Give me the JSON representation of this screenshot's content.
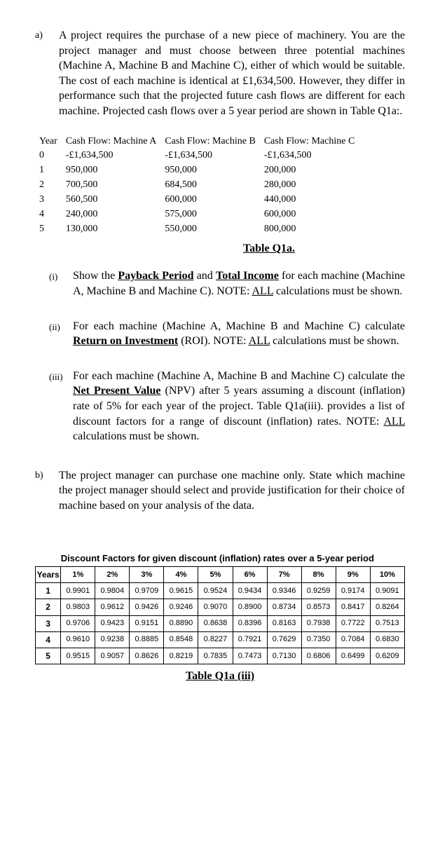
{
  "q_a": {
    "marker": "a)",
    "text": "A project requires the purchase of a new piece of machinery.  You are the project manager and must choose between three potential machines (Machine A, Machine B and Machine C), either of which would be suitable. The cost of each machine is identical at £1,634,500. However, they differ in performance such that the projected future cash flows are different for each machine.  Projected cash flows over a 5 year period are shown in Table Q1a:."
  },
  "cashflow": {
    "header": [
      "Year",
      "Cash Flow: Machine A",
      "Cash Flow: Machine B",
      "Cash Flow: Machine C"
    ],
    "rows": [
      [
        "0",
        "-£1,634,500",
        "-£1,634,500",
        "-£1,634,500"
      ],
      [
        "1",
        "950,000",
        "950,000",
        "200,000"
      ],
      [
        "2",
        "700,500",
        "684,500",
        "280,000"
      ],
      [
        "3",
        "560,500",
        "600,000",
        "440,000"
      ],
      [
        "4",
        "240,000",
        "575,000",
        "600,000"
      ],
      [
        "5",
        "130,000",
        "550,000",
        "800,000"
      ]
    ],
    "caption": "Table Q1a."
  },
  "sub": {
    "i": {
      "marker": "(i)",
      "pre": "Show the ",
      "u1": "Payback Period",
      "mid1": " and ",
      "u2": "Total Income",
      "post": " for each machine (Machine A, Machine B and Machine C). NOTE: ",
      "u3": "ALL",
      "tail": " calculations must be shown."
    },
    "ii": {
      "marker": "(ii)",
      "pre": "For each machine (Machine A, Machine B and Machine C) calculate ",
      "u1": "Return on Investment",
      "post": " (ROI). NOTE: ",
      "u2": "ALL",
      "tail": " calculations must be shown."
    },
    "iii": {
      "marker": "(iii)",
      "pre": "For each machine (Machine A, Machine B and Machine C) calculate the ",
      "u1": "Net Present Value",
      "post": " (NPV) after 5 years assuming a discount (inflation) rate of 5% for each year of the project.  Table Q1a(iii). provides a list of discount factors for a range of discount (inflation) rates. NOTE: ",
      "u2": "ALL",
      "tail": " calculations must be shown."
    }
  },
  "q_b": {
    "marker": "b)",
    "text": "The project manager can purchase one machine only.  State which machine the project manager should select and provide justification for their choice of machine based on your analysis of the data."
  },
  "discount": {
    "title": "Discount Factors for given discount (inflation) rates over a 5-year period",
    "years_label": "Years",
    "cols": [
      "1%",
      "2%",
      "3%",
      "4%",
      "5%",
      "6%",
      "7%",
      "8%",
      "9%",
      "10%"
    ],
    "rows": [
      {
        "y": "1",
        "v": [
          "0.9901",
          "0.9804",
          "0.9709",
          "0.9615",
          "0.9524",
          "0.9434",
          "0.9346",
          "0.9259",
          "0.9174",
          "0.9091"
        ]
      },
      {
        "y": "2",
        "v": [
          "0.9803",
          "0.9612",
          "0.9426",
          "0.9246",
          "0.9070",
          "0.8900",
          "0.8734",
          "0.8573",
          "0.8417",
          "0.8264"
        ]
      },
      {
        "y": "3",
        "v": [
          "0.9706",
          "0.9423",
          "0.9151",
          "0.8890",
          "0.8638",
          "0.8396",
          "0.8163",
          "0.7938",
          "0.7722",
          "0.7513"
        ]
      },
      {
        "y": "4",
        "v": [
          "0.9610",
          "0.9238",
          "0.8885",
          "0.8548",
          "0.8227",
          "0.7921",
          "0.7629",
          "0.7350",
          "0.7084",
          "0.6830"
        ]
      },
      {
        "y": "5",
        "v": [
          "0.9515",
          "0.9057",
          "0.8626",
          "0.8219",
          "0.7835",
          "0.7473",
          "0.7130",
          "0.6806",
          "0.6499",
          "0.6209"
        ]
      }
    ],
    "caption": "Table Q1a (iii)"
  }
}
